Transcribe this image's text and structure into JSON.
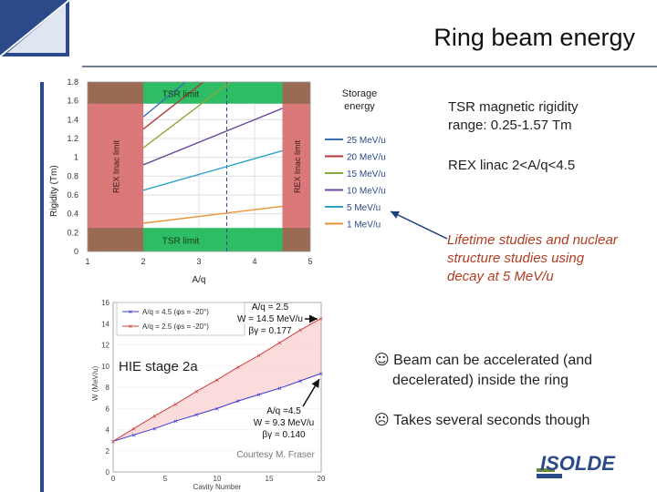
{
  "slide": {
    "title": "Ring beam energy",
    "notes": {
      "tsr_range_line1": "TSR magnetic rigidity",
      "tsr_range_line2": "range: 0.25-1.57 Tm",
      "rex_range": "REX linac 2<A/q<4.5",
      "lifetime_line1": "Lifetime studies and nuclear",
      "lifetime_line2": "structure studies using",
      "lifetime_line3": "decay at 5 MeV/u"
    },
    "bullets": {
      "accel_line1": "Beam can be accelerated (and",
      "accel_line2": "decelerated) inside the ring",
      "seconds": "Takes several seconds though"
    },
    "logo_text": "ISOLDE"
  },
  "colors": {
    "accent_blue": "#2a4a8a",
    "note_red": "#b23c22",
    "tsr_band": "#2ebd64",
    "rex_band": "#d7696c",
    "hie_fill": "#f9d6d6"
  },
  "chart_data": [
    {
      "type": "line",
      "title": "",
      "xlabel": "A/q",
      "ylabel": "Rigidity (Tm)",
      "xlim": [
        1,
        5
      ],
      "ylim": [
        0,
        1.8
      ],
      "xticks": [
        "1",
        "2",
        "3",
        "4",
        "5"
      ],
      "yticks": [
        "0",
        "0.2",
        "0.4",
        "0.6",
        "0.8",
        "1",
        "1.2",
        "1.4",
        "1.6",
        "1.8"
      ],
      "legend_title_line1": "Storage",
      "legend_title_line2": "energy",
      "legend_position": "right",
      "bands": [
        {
          "label": "TSR limit",
          "axis": "y",
          "range": [
            1.57,
            1.8
          ],
          "color": "#2ebd64"
        },
        {
          "label": "TSR limit",
          "axis": "y",
          "range": [
            0,
            0.25
          ],
          "color": "#2ebd64"
        },
        {
          "label": "REX linac limit",
          "axis": "x",
          "range": [
            1,
            2
          ],
          "color": "#d7696c"
        },
        {
          "label": "REX linac limit",
          "axis": "x",
          "range": [
            4.5,
            5
          ],
          "color": "#d7696c"
        }
      ],
      "marker_line_x": 3.5,
      "series": [
        {
          "name": "25 MeV/u",
          "color": "#3b6fb6",
          "x": [
            2.0,
            2.76
          ],
          "y": [
            1.43,
            1.8
          ]
        },
        {
          "name": "20 MeV/u",
          "color": "#b03a3a",
          "x": [
            2.0,
            3.08
          ],
          "y": [
            1.3,
            1.8
          ]
        },
        {
          "name": "15 MeV/u",
          "color": "#8aab3a",
          "x": [
            2.0,
            3.56
          ],
          "y": [
            1.1,
            1.8
          ]
        },
        {
          "name": "10 MeV/u",
          "color": "#6a4a9a",
          "x": [
            2.0,
            4.5
          ],
          "y": [
            0.92,
            1.52
          ]
        },
        {
          "name": "5 MeV/u",
          "color": "#2ea3c9",
          "x": [
            2.0,
            4.5
          ],
          "y": [
            0.65,
            1.07
          ]
        },
        {
          "name": "1 MeV/u",
          "color": "#e8923a",
          "x": [
            2.0,
            4.5
          ],
          "y": [
            0.3,
            0.48
          ]
        }
      ]
    },
    {
      "type": "line",
      "title": "",
      "xlabel": "Cavity Number",
      "ylabel": "W (MeV/u)",
      "xlim": [
        0,
        20
      ],
      "ylim": [
        0,
        16
      ],
      "xticks": [
        "0",
        "5",
        "10",
        "15",
        "20"
      ],
      "yticks": [
        "0",
        "2",
        "4",
        "6",
        "8",
        "10",
        "12",
        "14",
        "16"
      ],
      "stage_label": "HIE stage 2a",
      "credit": "Courtesy M. Fraser",
      "series": [
        {
          "name": "A/q = 4.5 (φs = -20°)",
          "color": "#3a3ad0",
          "marker": "x",
          "x": [
            0,
            2,
            4,
            6,
            8,
            10,
            12,
            14,
            16,
            18,
            20
          ],
          "y": [
            2.9,
            3.5,
            4.1,
            4.8,
            5.4,
            6.0,
            6.7,
            7.3,
            7.9,
            8.6,
            9.3
          ]
        },
        {
          "name": "A/q = 2.5 (φs = -20°)",
          "color": "#d03a3a",
          "marker": "x",
          "x": [
            0,
            2,
            4,
            6,
            8,
            10,
            12,
            14,
            16,
            18,
            20
          ],
          "y": [
            2.9,
            4.1,
            5.3,
            6.4,
            7.6,
            8.7,
            9.9,
            11.0,
            12.2,
            13.4,
            14.5
          ]
        }
      ],
      "annotations": [
        {
          "line1": "A/q = 2.5",
          "line2": "W = 14.5 MeV/u",
          "line3": "βγ = 0.177",
          "x": 20,
          "y": 14.5
        },
        {
          "line1": "A/q =4.5",
          "line2": "W = 9.3 MeV/u",
          "line3": "βγ = 0.140",
          "x": 20,
          "y": 9.3
        }
      ]
    }
  ]
}
